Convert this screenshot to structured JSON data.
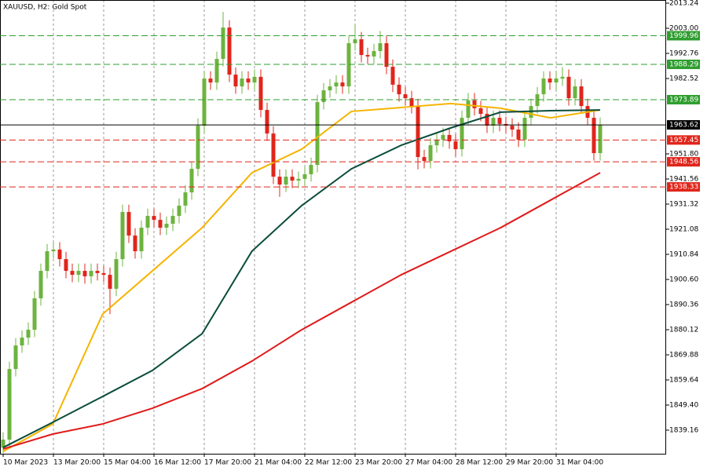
{
  "chart_data": {
    "type": "candlestick",
    "title": "XAUUSD, H2:  Gold Spot",
    "up_color": "#6cb33f",
    "down_color": "#e0251b",
    "candles": {
      "open": [
        1832.0,
        1835.3,
        1864.1,
        1873.7,
        1876.9,
        1880.1,
        1892.9,
        1904.1,
        1912.1,
        1912.8,
        1908.9,
        1904.1,
        1902.5,
        1904.1,
        1901.9,
        1904.1,
        1903.2,
        1902.5,
        1896.8,
        1908.9,
        1928.1,
        1918.5,
        1912.1,
        1921.7,
        1926.5,
        1924.9,
        1921.7,
        1923.3,
        1926.5,
        1930.7,
        1936.1,
        1945.7,
        1963.3,
        1982.5,
        1980.9,
        1990.5,
        2003.3,
        1984.1,
        1979.3,
        1982.5,
        1980.9,
        1983.2,
        1969.7,
        1960.1,
        1942.5,
        1939.3,
        1942.5,
        1940.9,
        1941.6,
        1943.5,
        1947.3,
        1972.9,
        1977.7,
        1979.3,
        1980.9,
        1979.3,
        1996.9,
        1998.5,
        1992.1,
        1991.5,
        1993.7,
        1996.9,
        1987.3,
        1980.0,
        1976.1,
        1974.5,
        1971.3,
        1950.5,
        1948.9,
        1955.3,
        1957.6,
        1959.5,
        1956.9,
        1953.7,
        1966.5,
        1973.6,
        1970.4,
        1968.1,
        1963.3,
        1966.5,
        1964.0,
        1963.3,
        1961.7,
        1957.6,
        1966.5,
        1971.3,
        1976.1,
        1982.5,
        1980.9,
        1982.5,
        1983.2,
        1974.5,
        1979.3,
        1971.3,
        1966.5,
        1952.1
      ],
      "high": [
        1838.3,
        1867.1,
        1876.7,
        1879.9,
        1883.1,
        1895.9,
        1907.1,
        1915.1,
        1915.8,
        1915.8,
        1911.9,
        1907.1,
        1907.1,
        1907.1,
        1907.1,
        1907.1,
        1906.2,
        1905.5,
        1911.9,
        1931.1,
        1931.1,
        1921.5,
        1924.7,
        1929.5,
        1929.5,
        1927.9,
        1926.3,
        1929.5,
        1933.7,
        1939.1,
        1948.7,
        1966.3,
        1985.5,
        1985.5,
        1993.5,
        2009.7,
        2006.3,
        1987.1,
        1985.5,
        1985.5,
        1986.2,
        1986.2,
        1972.7,
        1963.1,
        1945.5,
        1945.5,
        1945.5,
        1944.6,
        1946.5,
        1950.3,
        1975.9,
        1980.7,
        1982.3,
        1983.9,
        1983.9,
        1999.9,
        2004.5,
        2001.5,
        1995.1,
        1996.7,
        2001.9,
        1999.9,
        1990.3,
        1983.0,
        1979.1,
        1977.5,
        1974.3,
        1953.5,
        1958.3,
        1960.6,
        1962.5,
        1962.5,
        1959.9,
        1969.5,
        1976.6,
        1976.6,
        1973.4,
        1971.1,
        1969.5,
        1969.5,
        1967.0,
        1966.3,
        1964.7,
        1969.5,
        1974.3,
        1979.1,
        1985.5,
        1985.5,
        1985.5,
        1987.2,
        1986.2,
        1982.3,
        1982.3,
        1974.3,
        1969.5,
        1966.6
      ],
      "low": [
        1829.8,
        1832.3,
        1861.1,
        1870.7,
        1873.9,
        1877.1,
        1889.9,
        1901.1,
        1909.1,
        1905.9,
        1901.1,
        1899.5,
        1899.5,
        1898.9,
        1898.9,
        1900.2,
        1899.5,
        1886.5,
        1893.8,
        1905.9,
        1915.5,
        1909.1,
        1909.1,
        1918.7,
        1921.9,
        1918.7,
        1918.7,
        1920.3,
        1923.5,
        1927.7,
        1933.1,
        1942.7,
        1960.3,
        1977.9,
        1977.9,
        1987.5,
        1981.1,
        1976.3,
        1976.3,
        1977.9,
        1977.9,
        1966.7,
        1957.1,
        1939.5,
        1934.3,
        1936.3,
        1937.9,
        1937.9,
        1938.6,
        1940.5,
        1944.3,
        1969.9,
        1974.7,
        1976.3,
        1976.3,
        1976.3,
        1993.9,
        1989.1,
        1988.5,
        1988.5,
        1990.7,
        1984.3,
        1977.0,
        1973.1,
        1971.5,
        1968.3,
        1945.5,
        1945.9,
        1945.9,
        1952.3,
        1954.6,
        1953.9,
        1950.7,
        1950.7,
        1963.5,
        1967.4,
        1965.1,
        1960.3,
        1960.3,
        1961.0,
        1960.3,
        1958.7,
        1954.6,
        1954.6,
        1963.5,
        1968.3,
        1973.1,
        1977.9,
        1977.9,
        1979.5,
        1971.5,
        1971.5,
        1968.3,
        1963.5,
        1949.1,
        1949.1
      ],
      "close": [
        1835.3,
        1864.1,
        1873.7,
        1876.9,
        1880.1,
        1892.9,
        1904.1,
        1912.1,
        1912.8,
        1908.9,
        1904.1,
        1902.5,
        1904.1,
        1901.9,
        1904.1,
        1903.2,
        1902.5,
        1896.8,
        1908.9,
        1928.1,
        1918.5,
        1912.1,
        1921.7,
        1926.5,
        1924.9,
        1921.7,
        1923.3,
        1926.5,
        1930.7,
        1936.1,
        1945.7,
        1963.3,
        1982.5,
        1980.9,
        1990.5,
        2003.3,
        1984.1,
        1979.3,
        1982.5,
        1980.9,
        1983.2,
        1969.7,
        1960.1,
        1942.5,
        1939.3,
        1942.5,
        1940.9,
        1941.6,
        1943.5,
        1947.3,
        1972.9,
        1977.7,
        1979.3,
        1980.9,
        1979.3,
        1996.9,
        1998.5,
        1992.1,
        1991.5,
        1993.7,
        1996.9,
        1987.3,
        1980.0,
        1976.1,
        1974.5,
        1971.3,
        1950.5,
        1948.9,
        1955.3,
        1957.6,
        1959.5,
        1956.9,
        1953.7,
        1966.5,
        1973.6,
        1970.4,
        1968.1,
        1963.3,
        1966.5,
        1964.0,
        1963.3,
        1961.7,
        1957.6,
        1966.5,
        1971.3,
        1976.1,
        1982.5,
        1980.9,
        1982.5,
        1983.2,
        1974.5,
        1979.3,
        1971.3,
        1966.5,
        1952.1,
        1963.6
      ]
    },
    "moving_averages": [
      {
        "color": "#f5b400",
        "values": [
          1830.5,
          1841.7,
          1886.5,
          1904.1,
          1921.7,
          1944.1,
          1953.7,
          1969.1,
          1970.7,
          1972.3,
          1970.4,
          1966.5,
          1969.7
        ]
      },
      {
        "color": "#0b4d3c",
        "values": [
          1832.1,
          1842.4,
          1852.9,
          1863.5,
          1878.5,
          1912.1,
          1930.7,
          1945.7,
          1955.3,
          1962.4,
          1968.8,
          1969.4,
          1969.7
        ]
      },
      {
        "color": "#e01a1a",
        "values": [
          1831.5,
          1837.6,
          1841.7,
          1848.1,
          1856.1,
          1867.3,
          1880.1,
          1891.3,
          1902.5,
          1912.1,
          1921.7,
          1932.9,
          1944.1
        ]
      }
    ],
    "levels": [
      {
        "value": 1999.96,
        "color": "#2e9e2e",
        "style": "dashed"
      },
      {
        "value": 1988.29,
        "color": "#2e9e2e",
        "style": "dashed"
      },
      {
        "value": 1973.89,
        "color": "#2e9e2e",
        "style": "dashed"
      },
      {
        "value": 1963.62,
        "color": "#000000",
        "style": "solid"
      },
      {
        "value": 1957.45,
        "color": "#e0251b",
        "style": "dashed"
      },
      {
        "value": 1948.56,
        "color": "#e0251b",
        "style": "dashed"
      },
      {
        "value": 1938.33,
        "color": "#e0251b",
        "style": "dashed"
      }
    ],
    "ylim": [
      1829.56,
      2014.52
    ],
    "yticks": [
      2013.24,
      {
        "value": 2003,
        "label": "2003.00"
      },
      1992.76,
      1982.52,
      {
        "value": 1951.8,
        "label": "1951.80"
      },
      1941.56,
      1931.32,
      1921.08,
      1910.84,
      {
        "value": 1900.6,
        "label": "1900.60"
      },
      1890.36,
      1880.12,
      1869.88,
      1859.64,
      {
        "value": 1849.4,
        "label": "1849.40"
      },
      1839.16
    ],
    "xtick_labels": [
      "10 Mar 2023",
      "13 Mar 20:00",
      "15 Mar 04:00",
      "16 Mar 12:00",
      "17 Mar 20:00",
      "21 Mar 04:00",
      "22 Mar 12:00",
      "23 Mar 20:00",
      "27 Mar 04:00",
      "28 Mar 12:00",
      "29 Mar 20:00",
      "31 Mar 04:00"
    ],
    "grid": true
  }
}
